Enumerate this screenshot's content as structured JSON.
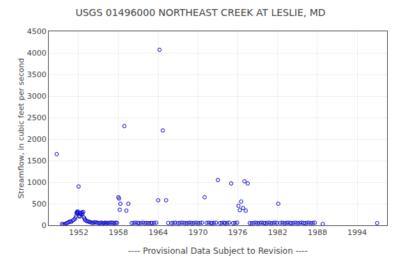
{
  "chart_data": {
    "type": "scatter",
    "title": "USGS 01496000 NORTHEAST CREEK AT LESLIE, MD",
    "ylabel": "Streamflow, in cubic feet per second",
    "annotations": [
      "---- Provisional Data Subject to Revision ----"
    ],
    "xlim": [
      1947.5,
      1998.5
    ],
    "ylim": [
      0,
      4500
    ],
    "xticks": [
      1952,
      1958,
      1964,
      1970,
      1976,
      1982,
      1988,
      1994
    ],
    "yticks": [
      0,
      500,
      1000,
      1500,
      2000,
      2500,
      3000,
      3500,
      4000,
      4500
    ],
    "grid": true,
    "color": "#0000CC",
    "marker": "circle-open",
    "x": [
      1948.7,
      1949.5,
      1949.7,
      1949.9,
      1950.1,
      1950.3,
      1950.5,
      1950.7,
      1950.9,
      1951.1,
      1951.3,
      1951.5,
      1951.6,
      1951.7,
      1951.75,
      1951.8,
      1951.85,
      1951.9,
      1952.0,
      1952.1,
      1952.2,
      1952.3,
      1952.4,
      1952.5,
      1952.6,
      1952.7,
      1952.8,
      1952.9,
      1953.0,
      1953.2,
      1953.4,
      1953.6,
      1953.8,
      1954.0,
      1954.2,
      1954.4,
      1954.6,
      1954.8,
      1955.0,
      1955.2,
      1955.4,
      1955.6,
      1955.8,
      1956.0,
      1956.2,
      1956.4,
      1956.6,
      1956.8,
      1957.0,
      1957.2,
      1957.4,
      1957.6,
      1957.8,
      1958.0,
      1958.1,
      1958.2,
      1958.3,
      1958.9,
      1959.2,
      1959.5,
      1960.0,
      1960.3,
      1960.6,
      1960.9,
      1961.1,
      1961.4,
      1961.7,
      1962.0,
      1962.3,
      1962.6,
      1962.9,
      1963.1,
      1963.4,
      1963.7,
      1964.0,
      1964.2,
      1964.7,
      1965.2,
      1965.5,
      1966.0,
      1966.3,
      1966.6,
      1967.0,
      1967.3,
      1967.6,
      1967.9,
      1968.2,
      1968.5,
      1968.8,
      1969.1,
      1969.4,
      1969.7,
      1970.0,
      1970.3,
      1970.6,
      1971.0,
      1971.3,
      1971.6,
      1971.9,
      1972.1,
      1972.4,
      1972.7,
      1973.0,
      1973.3,
      1973.6,
      1973.9,
      1974.1,
      1974.4,
      1974.7,
      1975.0,
      1975.3,
      1975.6,
      1975.9,
      1976.1,
      1976.3,
      1976.5,
      1976.8,
      1977.0,
      1977.2,
      1977.5,
      1977.8,
      1978.1,
      1978.4,
      1978.7,
      1979.0,
      1979.3,
      1979.6,
      1979.9,
      1980.1,
      1980.4,
      1980.7,
      1981.0,
      1981.3,
      1981.6,
      1981.9,
      1982.1,
      1982.4,
      1982.7,
      1983.0,
      1983.3,
      1983.6,
      1983.9,
      1984.1,
      1984.4,
      1984.7,
      1985.0,
      1985.3,
      1985.6,
      1985.9,
      1986.1,
      1986.4,
      1986.7,
      1987.0,
      1987.3,
      1987.6,
      1988.8,
      1997.0
    ],
    "values": [
      1650,
      30,
      20,
      25,
      40,
      55,
      70,
      90,
      80,
      110,
      130,
      160,
      200,
      280,
      310,
      270,
      300,
      320,
      900,
      220,
      200,
      280,
      250,
      300,
      270,
      310,
      180,
      150,
      120,
      100,
      90,
      80,
      70,
      60,
      55,
      70,
      65,
      60,
      55,
      50,
      60,
      55,
      50,
      60,
      55,
      50,
      60,
      55,
      60,
      55,
      50,
      60,
      55,
      650,
      620,
      360,
      500,
      2300,
      340,
      500,
      50,
      55,
      60,
      55,
      50,
      55,
      60,
      50,
      55,
      50,
      55,
      50,
      55,
      60,
      580,
      4070,
      2200,
      580,
      55,
      50,
      55,
      60,
      50,
      55,
      60,
      55,
      50,
      55,
      60,
      50,
      55,
      60,
      50,
      55,
      60,
      650,
      55,
      60,
      55,
      50,
      55,
      60,
      1050,
      50,
      55,
      60,
      50,
      55,
      60,
      970,
      50,
      55,
      60,
      450,
      350,
      550,
      400,
      1020,
      340,
      970,
      50,
      50,
      55,
      60,
      50,
      55,
      60,
      55,
      50,
      55,
      60,
      50,
      55,
      60,
      55,
      500,
      55,
      60,
      50,
      55,
      60,
      55,
      50,
      55,
      60,
      50,
      55,
      60,
      55,
      50,
      55,
      60,
      50,
      55,
      60,
      30,
      50
    ]
  }
}
